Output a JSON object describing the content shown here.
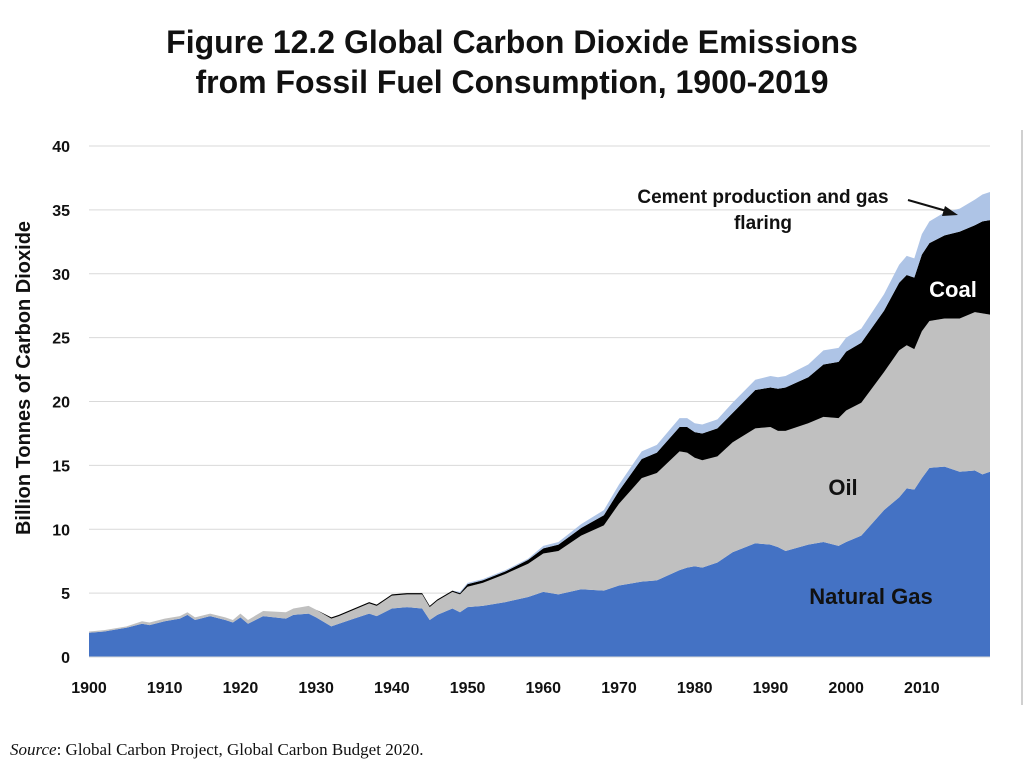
{
  "chart_data": {
    "type": "area",
    "title_line1": "Figure 12.2 Global Carbon Dioxide Emissions",
    "title_line2": "from Fossil Fuel Consumption, 1900-2019",
    "xlabel": "",
    "ylabel": "Billion Tonnes of Carbon Dioxide",
    "xlim": [
      1900,
      2019
    ],
    "ylim": [
      0,
      40
    ],
    "y_ticks": [
      "0",
      "5",
      "10",
      "15",
      "20",
      "25",
      "30",
      "35",
      "40"
    ],
    "x_ticks": [
      "1900",
      "1910",
      "1920",
      "1930",
      "1940",
      "1950",
      "1960",
      "1970",
      "1980",
      "1990",
      "2000",
      "2010"
    ],
    "grid": true,
    "x": [
      1900,
      1902,
      1905,
      1907,
      1908,
      1910,
      1912,
      1913,
      1914,
      1916,
      1918,
      1919,
      1920,
      1921,
      1923,
      1926,
      1927,
      1929,
      1930,
      1932,
      1933,
      1935,
      1937,
      1938,
      1940,
      1942,
      1944,
      1945,
      1946,
      1948,
      1949,
      1950,
      1952,
      1955,
      1958,
      1960,
      1962,
      1965,
      1968,
      1970,
      1973,
      1975,
      1978,
      1979,
      1980,
      1981,
      1983,
      1985,
      1988,
      1990,
      1991,
      1992,
      1995,
      1997,
      1999,
      2000,
      2002,
      2005,
      2007,
      2008,
      2009,
      2010,
      2011,
      2013,
      2015,
      2017,
      2018,
      2019
    ],
    "series": [
      {
        "name": "Natural Gas",
        "color": "#4472c4",
        "values": [
          1.9,
          2.0,
          2.3,
          2.6,
          2.5,
          2.8,
          3.0,
          3.3,
          2.9,
          3.2,
          2.9,
          2.7,
          3.1,
          2.6,
          3.2,
          3.0,
          3.3,
          3.4,
          3.1,
          2.4,
          2.6,
          3.0,
          3.4,
          3.2,
          3.8,
          3.9,
          3.8,
          2.9,
          3.3,
          3.8,
          3.5,
          3.9,
          4.0,
          4.3,
          4.7,
          5.1,
          4.9,
          5.3,
          5.2,
          5.6,
          5.9,
          6.0,
          6.8,
          7.0,
          7.1,
          7.0,
          7.4,
          8.2,
          8.9,
          8.8,
          8.6,
          8.3,
          8.8,
          9.0,
          8.7,
          9.0,
          9.5,
          11.5,
          12.5,
          13.2,
          13.1,
          14.0,
          14.8,
          14.9,
          14.5,
          14.6,
          14.3,
          14.5
        ]
      },
      {
        "name": "Oil",
        "color": "#c0c0c0",
        "values": [
          0.1,
          0.1,
          0.1,
          0.2,
          0.2,
          0.2,
          0.2,
          0.2,
          0.2,
          0.2,
          0.2,
          0.2,
          0.3,
          0.3,
          0.4,
          0.5,
          0.5,
          0.6,
          0.6,
          0.6,
          0.6,
          0.7,
          0.8,
          0.8,
          1.0,
          1.0,
          1.1,
          1.0,
          1.1,
          1.3,
          1.4,
          1.6,
          1.8,
          2.2,
          2.6,
          3.0,
          3.4,
          4.2,
          5.1,
          6.4,
          8.1,
          8.4,
          9.3,
          9.0,
          8.5,
          8.4,
          8.3,
          8.6,
          9.0,
          9.2,
          9.1,
          9.4,
          9.5,
          9.8,
          10.0,
          10.3,
          10.4,
          10.8,
          11.5,
          11.2,
          11.0,
          11.5,
          11.5,
          11.6,
          12.0,
          12.4,
          12.6,
          12.3
        ]
      },
      {
        "name": "Coal",
        "color": "#000000",
        "values": [
          0.0,
          0.0,
          0.0,
          0.0,
          0.0,
          0.0,
          0.0,
          0.0,
          0.0,
          0.0,
          0.0,
          0.0,
          0.0,
          0.0,
          0.0,
          0.0,
          0.0,
          0.0,
          0.0,
          0.1,
          0.1,
          0.1,
          0.1,
          0.1,
          0.1,
          0.1,
          0.1,
          0.1,
          0.1,
          0.1,
          0.1,
          0.2,
          0.2,
          0.2,
          0.3,
          0.4,
          0.5,
          0.6,
          0.8,
          1.0,
          1.5,
          1.6,
          1.9,
          2.0,
          2.0,
          2.1,
          2.2,
          2.3,
          3.0,
          3.1,
          3.3,
          3.4,
          3.6,
          4.1,
          4.4,
          4.6,
          4.7,
          4.8,
          5.3,
          5.5,
          5.6,
          6.0,
          6.1,
          6.5,
          6.8,
          6.8,
          7.2,
          7.4
        ]
      },
      {
        "name": "Cement production and gas flaring",
        "color": "#aec4e6",
        "values": [
          0.0,
          0.0,
          0.0,
          0.0,
          0.0,
          0.0,
          0.0,
          0.0,
          0.0,
          0.0,
          0.0,
          0.0,
          0.0,
          0.0,
          0.0,
          0.0,
          0.0,
          0.0,
          0.0,
          0.0,
          0.0,
          0.0,
          0.0,
          0.0,
          0.0,
          0.0,
          0.0,
          0.0,
          0.0,
          0.0,
          0.1,
          0.1,
          0.1,
          0.1,
          0.1,
          0.2,
          0.2,
          0.3,
          0.4,
          0.5,
          0.6,
          0.6,
          0.7,
          0.7,
          0.7,
          0.7,
          0.7,
          0.8,
          0.8,
          0.9,
          0.9,
          0.9,
          1.0,
          1.1,
          1.1,
          1.1,
          1.1,
          1.3,
          1.4,
          1.5,
          1.5,
          1.6,
          1.7,
          1.8,
          1.8,
          2.0,
          2.1,
          2.2
        ]
      }
    ],
    "labels": {
      "natural_gas": "Natural Gas",
      "oil": "Oil",
      "coal": "Coal",
      "cement_line1": "Cement production and gas",
      "cement_line2": "flaring"
    }
  },
  "source": {
    "prefix": "Source",
    "text": ": Global Carbon Project, Global Carbon Budget 2020."
  }
}
